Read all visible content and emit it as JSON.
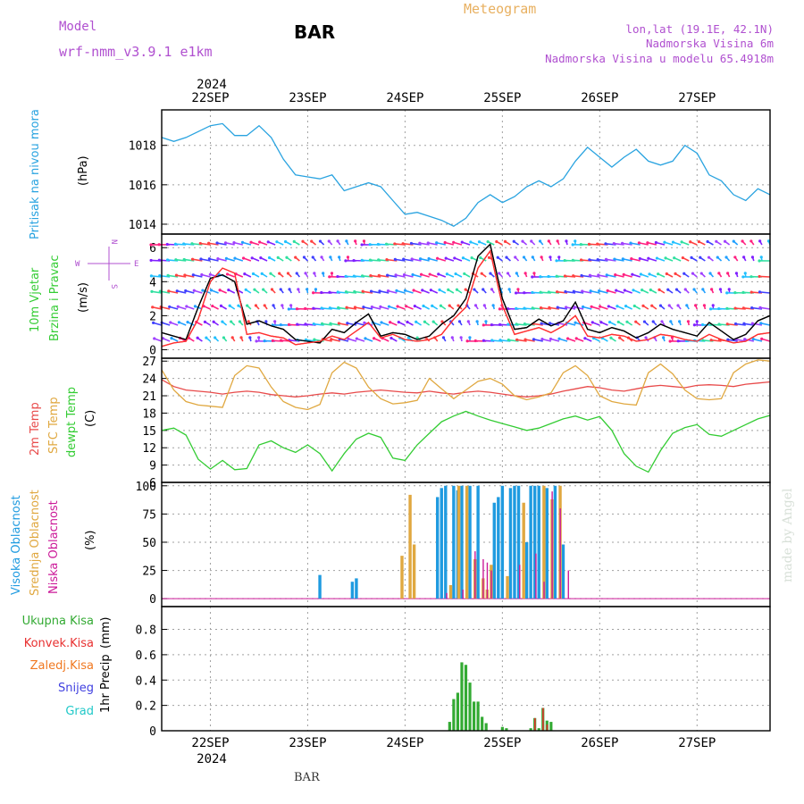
{
  "header": {
    "model_label": "Model",
    "model_name": "wrf-nmm_v3.9.1  e1km",
    "station": "BAR",
    "title": "Meteogram",
    "lonlat": "lon,lat (19.1E, 42.1N)",
    "altitude": "Nadmorska Visina 6m",
    "model_altitude": "Nadmorska Visina u modelu 65.4918m",
    "footer_station": "BAR",
    "watermark": "made by Angel"
  },
  "colors": {
    "pressure": "#29a3e0",
    "wind_speed": "#000000",
    "wind_gust": "#ff3030",
    "t2m": "#e84a4a",
    "tsfc": "#e0a840",
    "dewpt": "#33cc33",
    "cloud_high": "#1f9be0",
    "cloud_mid": "#e0a840",
    "cloud_low": "#cc1a99",
    "rain_total": "#33aa33",
    "rain_conv": "#e83030",
    "rain_frozen": "#f07820",
    "snow": "#4040e0",
    "hail": "#20c8c8",
    "model_label": "#b050d0",
    "title": "#e8b060"
  },
  "chart_data": {
    "type": "line",
    "x_axis": {
      "top_year": "2024",
      "bottom_year": "2024",
      "day_labels": [
        "22SEP",
        "23SEP",
        "24SEP",
        "25SEP",
        "26SEP",
        "27SEP"
      ],
      "start_day": "21SEP 12h",
      "end_day": "27SEP 12h",
      "hours": 150
    },
    "panels": [
      {
        "id": "pressure",
        "ylabel": "Pritisak na nivou mora",
        "unit": "(hPa)",
        "ylim": [
          1013.5,
          1019.8
        ],
        "yticks": [
          1014,
          1016,
          1018
        ],
        "series": [
          {
            "color_key": "pressure",
            "x": [
              0,
              3,
              6,
              9,
              12,
              15,
              18,
              21,
              24,
              27,
              30,
              33,
              36,
              39,
              42,
              45,
              48,
              51,
              54,
              57,
              60,
              63,
              66,
              69,
              72,
              75,
              78,
              81,
              84,
              87,
              90,
              93,
              96,
              99,
              102,
              105,
              108,
              111,
              114,
              117,
              120,
              123,
              126,
              129,
              132,
              135,
              138,
              141,
              144,
              147,
              150
            ],
            "y": [
              1018.4,
              1018.2,
              1018.4,
              1018.7,
              1019.0,
              1019.1,
              1018.5,
              1018.5,
              1019.0,
              1018.4,
              1017.3,
              1016.5,
              1016.4,
              1016.3,
              1016.5,
              1015.7,
              1015.9,
              1016.1,
              1015.9,
              1015.2,
              1014.5,
              1014.6,
              1014.4,
              1014.2,
              1013.9,
              1014.3,
              1015.1,
              1015.5,
              1015.1,
              1015.4,
              1015.9,
              1016.2,
              1015.9,
              1016.3,
              1017.2,
              1017.9,
              1017.4,
              1016.9,
              1017.4,
              1017.8,
              1017.2,
              1017.0,
              1017.2,
              1018.0,
              1017.6,
              1016.5,
              1016.2,
              1015.5,
              1015.2,
              1015.8,
              1015.5
            ]
          }
        ]
      },
      {
        "id": "wind",
        "ylabel": "10m Vjetar",
        "ylabel2": "Brzina i Pravac",
        "unit": "(m/s)",
        "compass": {
          "n": "N",
          "s": "S",
          "e": "E",
          "w": "W"
        },
        "ylim": [
          -0.5,
          6.8
        ],
        "yticks": [
          0,
          2,
          4,
          6
        ],
        "series": [
          {
            "name": "speed",
            "color_key": "wind_speed",
            "x": [
              0,
              3,
              6,
              9,
              12,
              15,
              18,
              21,
              24,
              27,
              30,
              33,
              36,
              39,
              42,
              45,
              48,
              51,
              54,
              57,
              60,
              63,
              66,
              69,
              72,
              75,
              78,
              81,
              84,
              87,
              90,
              93,
              96,
              99,
              102,
              105,
              108,
              111,
              114,
              117,
              120,
              123,
              126,
              129,
              132,
              135,
              138,
              141,
              144,
              147,
              150
            ],
            "y": [
              1.0,
              0.8,
              0.6,
              2.5,
              4.2,
              4.4,
              4.0,
              1.5,
              1.7,
              1.4,
              1.2,
              0.6,
              0.5,
              0.4,
              1.2,
              1.0,
              1.6,
              2.1,
              0.8,
              1.0,
              0.9,
              0.6,
              0.8,
              1.5,
              2.0,
              3.0,
              5.5,
              6.2,
              3.0,
              1.2,
              1.3,
              1.8,
              1.4,
              1.7,
              2.8,
              1.2,
              1.0,
              1.3,
              1.1,
              0.7,
              1.0,
              1.5,
              1.2,
              1.0,
              0.8,
              1.6,
              1.1,
              0.6,
              0.9,
              1.7,
              2.0
            ]
          },
          {
            "name": "gust",
            "color_key": "wind_gust",
            "x": [
              0,
              3,
              6,
              9,
              12,
              15,
              18,
              21,
              24,
              27,
              30,
              33,
              36,
              39,
              42,
              45,
              48,
              51,
              54,
              57,
              60,
              63,
              66,
              69,
              72,
              75,
              78,
              81,
              84,
              87,
              90,
              93,
              96,
              99,
              102,
              105,
              108,
              111,
              114,
              117,
              120,
              123,
              126,
              129,
              132,
              135,
              138,
              141,
              144,
              147,
              150
            ],
            "y": [
              0.2,
              0.4,
              0.5,
              1.8,
              4.0,
              4.8,
              4.5,
              0.9,
              1.0,
              0.8,
              0.7,
              0.3,
              0.4,
              0.5,
              0.8,
              0.6,
              1.1,
              1.6,
              0.7,
              0.9,
              0.6,
              0.5,
              0.6,
              0.9,
              1.8,
              2.5,
              4.8,
              5.8,
              2.6,
              0.9,
              1.1,
              1.3,
              1.0,
              1.4,
              2.0,
              0.8,
              0.7,
              0.9,
              0.8,
              0.5,
              0.6,
              0.9,
              0.8,
              0.6,
              0.5,
              0.9,
              0.6,
              0.4,
              0.5,
              0.9,
              1.0
            ]
          }
        ]
      },
      {
        "id": "temperature",
        "ylabel": "2m Temp",
        "ylabel2": "SFC Temp",
        "ylabel3": "dewpt Temp",
        "unit": "(C)",
        "ylim": [
          6,
          27.5
        ],
        "yticks": [
          6,
          9,
          12,
          15,
          18,
          21,
          24,
          27
        ],
        "series": [
          {
            "name": "2m",
            "color_key": "t2m",
            "x": [
              0,
              3,
              6,
              9,
              12,
              15,
              18,
              21,
              24,
              27,
              30,
              33,
              36,
              39,
              42,
              45,
              48,
              51,
              54,
              57,
              60,
              63,
              66,
              69,
              72,
              75,
              78,
              81,
              84,
              87,
              90,
              93,
              96,
              99,
              102,
              105,
              108,
              111,
              114,
              117,
              120,
              123,
              126,
              129,
              132,
              135,
              138,
              141,
              144,
              147,
              150
            ],
            "y": [
              23.8,
              22.6,
              22.0,
              21.8,
              21.6,
              21.3,
              21.6,
              21.8,
              21.6,
              21.2,
              21.0,
              20.8,
              21.0,
              21.3,
              21.5,
              21.3,
              21.6,
              21.8,
              22.0,
              21.8,
              21.6,
              21.5,
              21.8,
              21.5,
              21.3,
              21.6,
              21.8,
              21.6,
              21.3,
              21.0,
              20.8,
              21.0,
              21.3,
              21.8,
              22.2,
              22.6,
              22.4,
              22.0,
              21.8,
              22.2,
              22.6,
              22.8,
              22.6,
              22.4,
              22.8,
              22.9,
              22.8,
              22.6,
              23.0,
              23.2,
              23.4
            ]
          },
          {
            "name": "sfc",
            "color_key": "tsfc",
            "x": [
              0,
              3,
              6,
              9,
              12,
              15,
              18,
              21,
              24,
              27,
              30,
              33,
              36,
              39,
              42,
              45,
              48,
              51,
              54,
              57,
              60,
              63,
              66,
              69,
              72,
              75,
              78,
              81,
              84,
              87,
              90,
              93,
              96,
              99,
              102,
              105,
              108,
              111,
              114,
              117,
              120,
              123,
              126,
              129,
              132,
              135,
              138,
              141,
              144,
              147,
              150
            ],
            "y": [
              25.5,
              22.0,
              20.0,
              19.4,
              19.2,
              19.0,
              24.5,
              26.2,
              25.8,
              22.5,
              20.0,
              19.0,
              18.6,
              19.5,
              25.0,
              26.8,
              25.8,
              22.5,
              20.5,
              19.6,
              19.8,
              20.2,
              24.0,
              22.2,
              20.5,
              22.0,
              23.5,
              24.0,
              23.0,
              21.0,
              20.3,
              20.8,
              21.5,
              25.0,
              26.2,
              24.5,
              21.0,
              20.0,
              19.6,
              19.4,
              25.0,
              26.5,
              24.8,
              22.0,
              20.5,
              20.3,
              20.5,
              25.0,
              26.5,
              27.2,
              27.0
            ]
          },
          {
            "name": "dewpt",
            "color_key": "dewpt",
            "x": [
              0,
              3,
              6,
              9,
              12,
              15,
              18,
              21,
              24,
              27,
              30,
              33,
              36,
              39,
              42,
              45,
              48,
              51,
              54,
              57,
              60,
              63,
              66,
              69,
              72,
              75,
              78,
              81,
              84,
              87,
              90,
              93,
              96,
              99,
              102,
              105,
              108,
              111,
              114,
              117,
              120,
              123,
              126,
              129,
              132,
              135,
              138,
              141,
              144,
              147,
              150
            ],
            "y": [
              15.0,
              15.4,
              14.2,
              10.0,
              8.3,
              9.8,
              8.2,
              8.4,
              12.5,
              13.2,
              12.0,
              11.2,
              12.5,
              11.0,
              8.0,
              11.0,
              13.5,
              14.5,
              13.8,
              10.2,
              9.8,
              12.5,
              14.5,
              16.5,
              17.5,
              18.3,
              17.5,
              16.8,
              16.2,
              15.6,
              15.0,
              15.4,
              16.2,
              17.0,
              17.5,
              16.8,
              17.4,
              15.0,
              11.0,
              8.8,
              7.8,
              11.5,
              14.5,
              15.5,
              16.0,
              14.3,
              14.0,
              15.0,
              16.0,
              17.0,
              17.6
            ]
          }
        ]
      },
      {
        "id": "clouds",
        "ylabel": "Visoka Oblacnost",
        "ylabel2": "Srednja Oblacnost",
        "ylabel3": "Niska Oblacnost",
        "unit": "(%)",
        "ylim": [
          -7,
          103
        ],
        "yticks": [
          0,
          25,
          50,
          75,
          100
        ],
        "bars": {
          "high": {
            "x": [
              39,
              47,
              48,
              68,
              69,
              70,
              72,
              73,
              74,
              76,
              78,
              82,
              83,
              84,
              86,
              87,
              88,
              90,
              91,
              92,
              93,
              95,
              97,
              99
            ],
            "y": [
              21,
              15,
              18,
              90,
              98,
              100,
              100,
              96,
              100,
              100,
              100,
              85,
              90,
              100,
              98,
              100,
              100,
              50,
              100,
              100,
              100,
              98,
              100,
              48
            ]
          },
          "mid": {
            "x": [
              59,
              61,
              62,
              71,
              73,
              75,
              77,
              79,
              80,
              81,
              85,
              89,
              94,
              96,
              98
            ],
            "y": [
              38,
              92,
              48,
              12,
              100,
              100,
              35,
              18,
              8,
              30,
              20,
              85,
              100,
              88,
              100
            ]
          },
          "low": {
            "x": [
              70,
              74,
              77,
              79,
              80,
              81,
              88,
              92,
              94,
              96,
              98,
              100
            ],
            "y": [
              5,
              8,
              42,
              35,
              32,
              25,
              30,
              40,
              15,
              95,
              80,
              25
            ]
          }
        }
      },
      {
        "id": "precip",
        "ylabel": "1hr Precip",
        "unit": "(mm)",
        "ylim": [
          0,
          0.98
        ],
        "yticks": [
          0,
          0.2,
          0.4,
          0.6,
          0.8
        ],
        "bars": {
          "total": {
            "x": [
              71,
              72,
              73,
              74,
              75,
              76,
              77,
              78,
              79,
              80,
              84,
              85,
              91,
              92,
              93,
              94,
              95,
              96
            ],
            "y": [
              0.07,
              0.25,
              0.3,
              0.54,
              0.52,
              0.38,
              0.23,
              0.23,
              0.11,
              0.06,
              0.03,
              0.02,
              0.02,
              0.1,
              0.02,
              0.18,
              0.08,
              0.07
            ]
          },
          "conv": {
            "x": [
              92,
              94,
              95
            ],
            "y": [
              0.1,
              0.18,
              0.05
            ]
          }
        },
        "legend": [
          "Ukupna Kisa",
          "Konvek.Kisa",
          "Zaledj.Kisa",
          "Snijeg",
          "Grad"
        ]
      }
    ]
  }
}
